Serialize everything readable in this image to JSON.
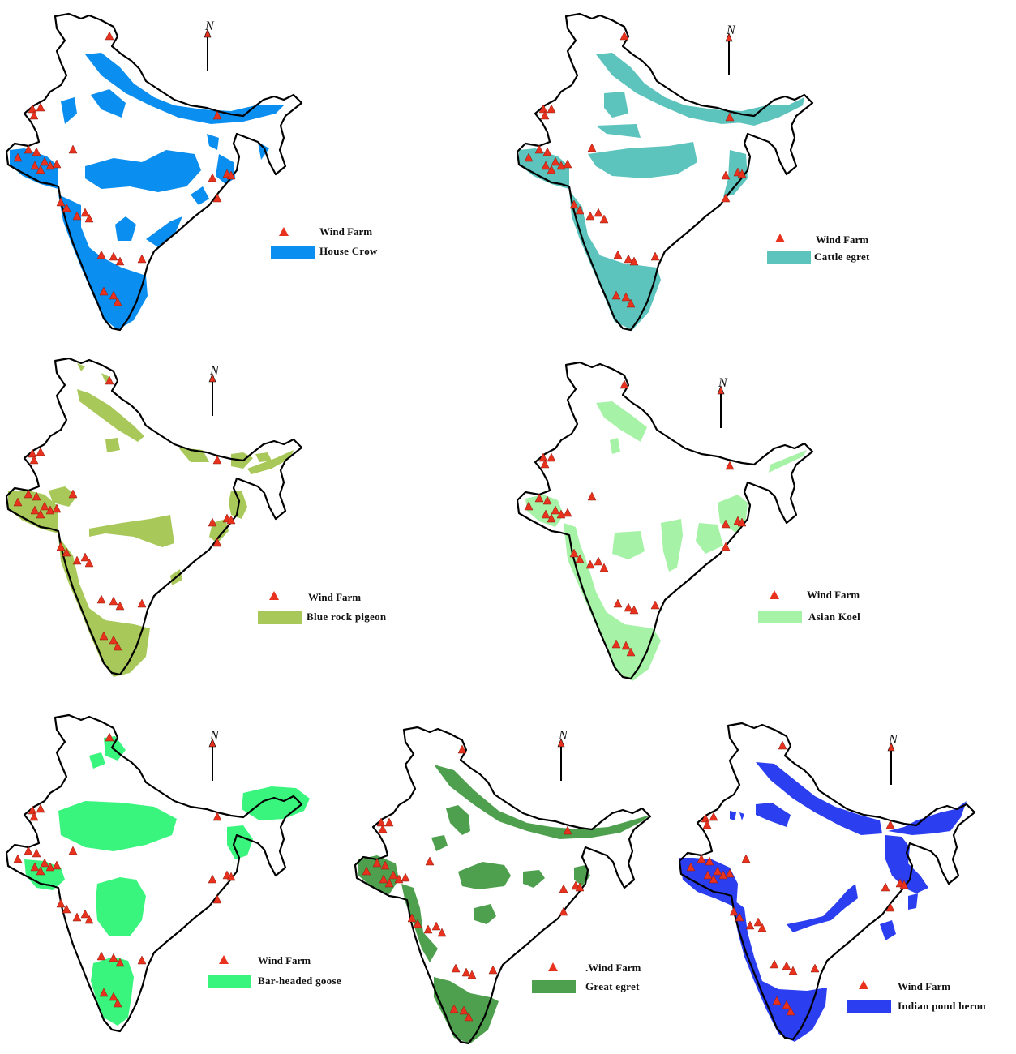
{
  "legend": {
    "wind_farm_label": "Wind Farm"
  },
  "north_letter": "N",
  "colors": {
    "wind_farm": "#e8321e",
    "outline": "#000000"
  },
  "maps": [
    {
      "id": "house-crow",
      "species": "House Crow",
      "color": "#0a8ef0",
      "wind_farm_label": "Wind Farm"
    },
    {
      "id": "cattle-egret",
      "species": "Cattle egret",
      "color": "#5cc4bd",
      "wind_farm_label": "Wind Farm"
    },
    {
      "id": "blue-rock-pigeon",
      "species": "Blue rock pigeon",
      "color": "#a8c859",
      "wind_farm_label": "Wind Farm"
    },
    {
      "id": "asian-koel",
      "species": "Asian Koel",
      "color": "#a6f2a6",
      "wind_farm_label": "Wind Farm"
    },
    {
      "id": "bar-headed-goose",
      "species": "Bar-headed goose",
      "color": "#3af57d",
      "wind_farm_label": "Wind Farm"
    },
    {
      "id": "great-egret",
      "species": "Great egret",
      "color": "#4ea04e",
      "wind_farm_label": ".Wind Farm"
    },
    {
      "id": "indian-pond-heron",
      "species": "Indian pond heron",
      "color": "#2b3ef0",
      "wind_farm_label": "Wind Farm"
    }
  ]
}
